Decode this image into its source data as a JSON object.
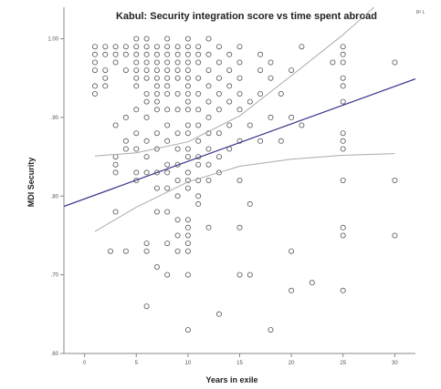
{
  "chart_data": {
    "type": "scatter",
    "title": "Kabul: Security integration score vs time spent abroad",
    "corner_label": "R² L",
    "xlabel": "Years in exile",
    "ylabel": "MDI Security",
    "xlim": [
      -2,
      32
    ],
    "ylim": [
      0.6,
      1.04
    ],
    "xticks": [
      0,
      5,
      10,
      15,
      20,
      25,
      30
    ],
    "yticks": [
      0.6,
      0.7,
      0.8,
      0.9,
      1.0
    ],
    "ytick_labels": [
      ".60",
      ".70",
      ".80",
      ".90",
      "1.00"
    ],
    "grid": false,
    "legend": "none",
    "colors": {
      "points": "#555555",
      "fit": "#33338a",
      "ci": "#aaaaaa",
      "axes": "#888888"
    },
    "points": [
      [
        1,
        0.99
      ],
      [
        1,
        0.98
      ],
      [
        1,
        0.97
      ],
      [
        1,
        0.96
      ],
      [
        1,
        0.94
      ],
      [
        1,
        0.93
      ],
      [
        2,
        0.99
      ],
      [
        2,
        0.98
      ],
      [
        2,
        0.96
      ],
      [
        2,
        0.95
      ],
      [
        2,
        0.94
      ],
      [
        3,
        0.99
      ],
      [
        3,
        0.98
      ],
      [
        3,
        0.97
      ],
      [
        3,
        0.89
      ],
      [
        3,
        0.85
      ],
      [
        3,
        0.84
      ],
      [
        3,
        0.83
      ],
      [
        3,
        0.78
      ],
      [
        2.5,
        0.73
      ],
      [
        4,
        0.99
      ],
      [
        4,
        0.98
      ],
      [
        4,
        0.96
      ],
      [
        4,
        0.9
      ],
      [
        4,
        0.87
      ],
      [
        4,
        0.86
      ],
      [
        4,
        0.73
      ],
      [
        5,
        1.0
      ],
      [
        5,
        0.99
      ],
      [
        5,
        0.98
      ],
      [
        5,
        0.97
      ],
      [
        5,
        0.96
      ],
      [
        5,
        0.95
      ],
      [
        5,
        0.94
      ],
      [
        5,
        0.91
      ],
      [
        5,
        0.88
      ],
      [
        5,
        0.86
      ],
      [
        5,
        0.83
      ],
      [
        5,
        0.82
      ],
      [
        6,
        1.0
      ],
      [
        6,
        0.99
      ],
      [
        6,
        0.98
      ],
      [
        6,
        0.97
      ],
      [
        6,
        0.96
      ],
      [
        6,
        0.95
      ],
      [
        6,
        0.93
      ],
      [
        6,
        0.92
      ],
      [
        6,
        0.9
      ],
      [
        6,
        0.87
      ],
      [
        6,
        0.85
      ],
      [
        6,
        0.83
      ],
      [
        6,
        0.74
      ],
      [
        6,
        0.66
      ],
      [
        6,
        0.73
      ],
      [
        7,
        0.99
      ],
      [
        7,
        0.98
      ],
      [
        7,
        0.97
      ],
      [
        7,
        0.96
      ],
      [
        7,
        0.95
      ],
      [
        7,
        0.94
      ],
      [
        7,
        0.93
      ],
      [
        7,
        0.92
      ],
      [
        7,
        0.91
      ],
      [
        7,
        0.88
      ],
      [
        7,
        0.86
      ],
      [
        7,
        0.83
      ],
      [
        7,
        0.81
      ],
      [
        7,
        0.78
      ],
      [
        7,
        0.71
      ],
      [
        8,
        1.0
      ],
      [
        8,
        0.99
      ],
      [
        8,
        0.98
      ],
      [
        8,
        0.97
      ],
      [
        8,
        0.96
      ],
      [
        8,
        0.95
      ],
      [
        8,
        0.94
      ],
      [
        8,
        0.93
      ],
      [
        8,
        0.91
      ],
      [
        8,
        0.89
      ],
      [
        8,
        0.87
      ],
      [
        8,
        0.84
      ],
      [
        8,
        0.83
      ],
      [
        8,
        0.81
      ],
      [
        8,
        0.78
      ],
      [
        8,
        0.74
      ],
      [
        8,
        0.7
      ],
      [
        9,
        0.99
      ],
      [
        9,
        0.98
      ],
      [
        9,
        0.97
      ],
      [
        9,
        0.96
      ],
      [
        9,
        0.95
      ],
      [
        9,
        0.93
      ],
      [
        9,
        0.91
      ],
      [
        9,
        0.88
      ],
      [
        9,
        0.86
      ],
      [
        9,
        0.84
      ],
      [
        9,
        0.82
      ],
      [
        9,
        0.8
      ],
      [
        9,
        0.77
      ],
      [
        9,
        0.75
      ],
      [
        9,
        0.73
      ],
      [
        10,
        1.0
      ],
      [
        10,
        0.99
      ],
      [
        10,
        0.98
      ],
      [
        10,
        0.97
      ],
      [
        10,
        0.96
      ],
      [
        10,
        0.95
      ],
      [
        10,
        0.94
      ],
      [
        10,
        0.93
      ],
      [
        10,
        0.92
      ],
      [
        10,
        0.91
      ],
      [
        10,
        0.89
      ],
      [
        10,
        0.88
      ],
      [
        10,
        0.86
      ],
      [
        10,
        0.85
      ],
      [
        10,
        0.83
      ],
      [
        10,
        0.82
      ],
      [
        10,
        0.81
      ],
      [
        10,
        0.77
      ],
      [
        10,
        0.76
      ],
      [
        10,
        0.75
      ],
      [
        10,
        0.74
      ],
      [
        10,
        0.73
      ],
      [
        10,
        0.7
      ],
      [
        10,
        0.63
      ],
      [
        11,
        0.99
      ],
      [
        11,
        0.98
      ],
      [
        11,
        0.97
      ],
      [
        11,
        0.95
      ],
      [
        11,
        0.93
      ],
      [
        11,
        0.91
      ],
      [
        11,
        0.89
      ],
      [
        11,
        0.87
      ],
      [
        11,
        0.85
      ],
      [
        11,
        0.84
      ],
      [
        11,
        0.82
      ],
      [
        11,
        0.8
      ],
      [
        11,
        0.79
      ],
      [
        12,
        1.0
      ],
      [
        12,
        0.98
      ],
      [
        12,
        0.96
      ],
      [
        12,
        0.94
      ],
      [
        12,
        0.92
      ],
      [
        12,
        0.9
      ],
      [
        12,
        0.88
      ],
      [
        12,
        0.86
      ],
      [
        12,
        0.84
      ],
      [
        12,
        0.82
      ],
      [
        12,
        0.76
      ],
      [
        13,
        0.99
      ],
      [
        13,
        0.97
      ],
      [
        13,
        0.95
      ],
      [
        13,
        0.93
      ],
      [
        13,
        0.91
      ],
      [
        13,
        0.88
      ],
      [
        13,
        0.85
      ],
      [
        13,
        0.83
      ],
      [
        13,
        0.65
      ],
      [
        14,
        0.98
      ],
      [
        14,
        0.96
      ],
      [
        14,
        0.94
      ],
      [
        14,
        0.92
      ],
      [
        14,
        0.89
      ],
      [
        14,
        0.86
      ],
      [
        15,
        0.99
      ],
      [
        15,
        0.97
      ],
      [
        15,
        0.95
      ],
      [
        15,
        0.93
      ],
      [
        15,
        0.91
      ],
      [
        15,
        0.87
      ],
      [
        15,
        0.82
      ],
      [
        15,
        0.76
      ],
      [
        15,
        0.7
      ],
      [
        16,
        0.92
      ],
      [
        16,
        0.89
      ],
      [
        16,
        0.7
      ],
      [
        16,
        0.79
      ],
      [
        17,
        0.98
      ],
      [
        17,
        0.96
      ],
      [
        17,
        0.93
      ],
      [
        17,
        0.87
      ],
      [
        18,
        0.97
      ],
      [
        18,
        0.95
      ],
      [
        18,
        0.9
      ],
      [
        18,
        0.63
      ],
      [
        19,
        0.93
      ],
      [
        19,
        0.87
      ],
      [
        20,
        0.96
      ],
      [
        20,
        0.9
      ],
      [
        20,
        0.73
      ],
      [
        20,
        0.68
      ],
      [
        21,
        0.99
      ],
      [
        21,
        0.89
      ],
      [
        22,
        0.69
      ],
      [
        24,
        0.97
      ],
      [
        25,
        0.99
      ],
      [
        25,
        0.98
      ],
      [
        25,
        0.97
      ],
      [
        25,
        0.95
      ],
      [
        25,
        0.94
      ],
      [
        25,
        0.92
      ],
      [
        25,
        0.88
      ],
      [
        25,
        0.87
      ],
      [
        25,
        0.86
      ],
      [
        25,
        0.82
      ],
      [
        25,
        0.76
      ],
      [
        25,
        0.75
      ],
      [
        25,
        0.68
      ],
      [
        30,
        0.97
      ],
      [
        30,
        0.82
      ],
      [
        30,
        0.75
      ]
    ],
    "fit_line": {
      "x": [
        -2,
        32
      ],
      "y": [
        0.787,
        0.949
      ]
    },
    "ci_upper": {
      "x": [
        1,
        5,
        10,
        15,
        20,
        25,
        28
      ],
      "y": [
        0.851,
        0.855,
        0.869,
        0.902,
        0.953,
        1.005,
        1.04
      ]
    },
    "ci_lower": {
      "x": [
        1,
        5,
        10,
        15,
        20,
        25,
        30
      ],
      "y": [
        0.755,
        0.786,
        0.818,
        0.838,
        0.847,
        0.852,
        0.854
      ]
    }
  }
}
